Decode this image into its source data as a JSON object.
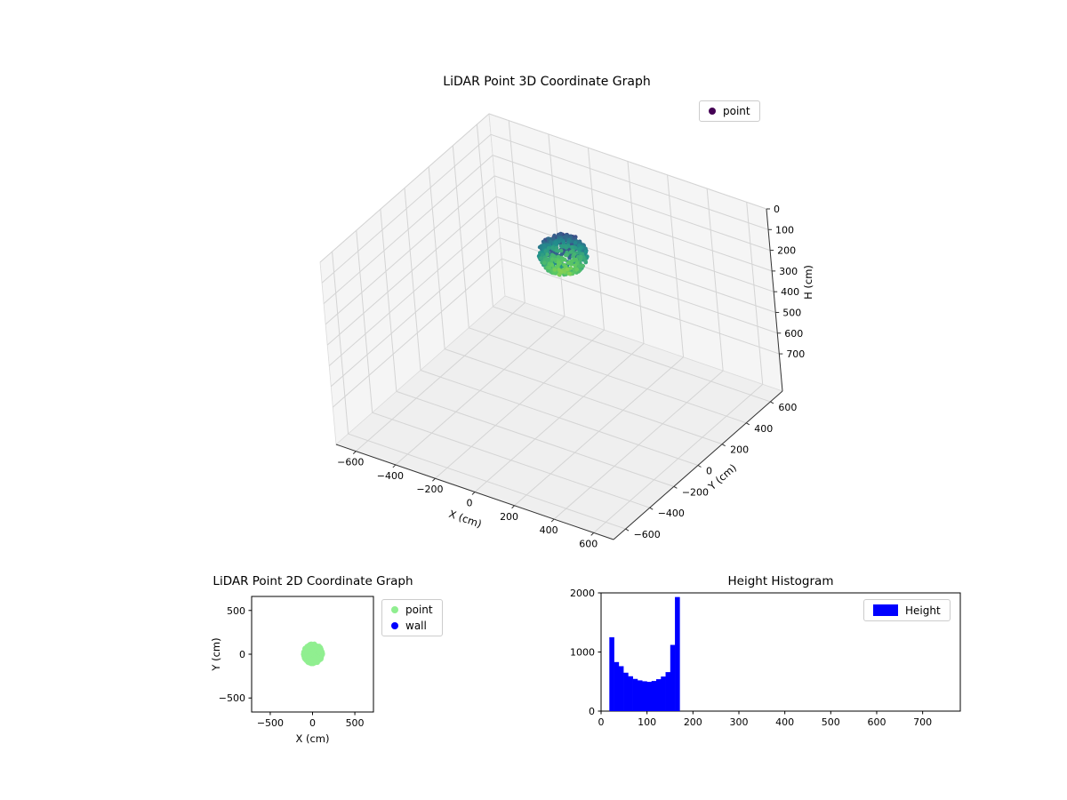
{
  "chart_data": [
    {
      "id": "plot3d",
      "type": "scatter3d",
      "title": "LiDAR Point 3D Coordinate Graph",
      "xlabel": "X (cm)",
      "ylabel": "Y (cm)",
      "zlabel": "H (cm)",
      "xlim": [
        -700,
        700
      ],
      "ylim": [
        -700,
        700
      ],
      "zlim": [
        0,
        880
      ],
      "zaxis_inverted": true,
      "xticks": [
        -600,
        -400,
        -200,
        0,
        200,
        400,
        600
      ],
      "yticks": [
        -600,
        -400,
        -200,
        0,
        200,
        400,
        600
      ],
      "zticks": [
        0,
        100,
        200,
        300,
        400,
        500,
        600,
        700
      ],
      "grid": true,
      "legend": [
        {
          "label": "point",
          "color": "#440154"
        }
      ],
      "colormap": "viridis",
      "cluster": {
        "center": [
          40,
          80,
          120
        ],
        "radius_xy": 105,
        "radius_z": 85,
        "n": 550,
        "color_by": "height",
        "color_range": [
          0,
          250
        ]
      }
    },
    {
      "id": "plot2d",
      "type": "scatter",
      "title": "LiDAR Point 2D Coordinate Graph",
      "xlabel": "X (cm)",
      "ylabel": "Y (cm)",
      "xlim": [
        -720,
        720
      ],
      "ylim": [
        -660,
        660
      ],
      "xticks": [
        -500,
        0,
        500
      ],
      "yticks": [
        -500,
        0,
        500
      ],
      "legend": [
        {
          "label": "point",
          "color": "#90ee90"
        },
        {
          "label": "wall",
          "color": "#0000ff"
        }
      ],
      "series": [
        {
          "name": "point",
          "color": "#90ee90",
          "cluster": {
            "center": [
              5,
              5
            ],
            "radius": 115,
            "n": 260
          }
        },
        {
          "name": "wall",
          "color": "#0000ff",
          "points": []
        }
      ]
    },
    {
      "id": "histogram",
      "type": "histogram",
      "title": "Height Histogram",
      "xlim": [
        0,
        782
      ],
      "ylim": [
        0,
        2000
      ],
      "xticks": [
        0,
        100,
        200,
        300,
        400,
        500,
        600,
        700
      ],
      "yticks": [
        0,
        1000,
        2000
      ],
      "legend": [
        {
          "label": "Height",
          "color": "#0000ff"
        }
      ],
      "bar_color": "#0000ff",
      "bin_start": 18,
      "bin_width": 10.2,
      "counts": [
        1250,
        830,
        760,
        650,
        590,
        545,
        520,
        505,
        495,
        510,
        540,
        585,
        660,
        1120,
        1930
      ]
    }
  ]
}
